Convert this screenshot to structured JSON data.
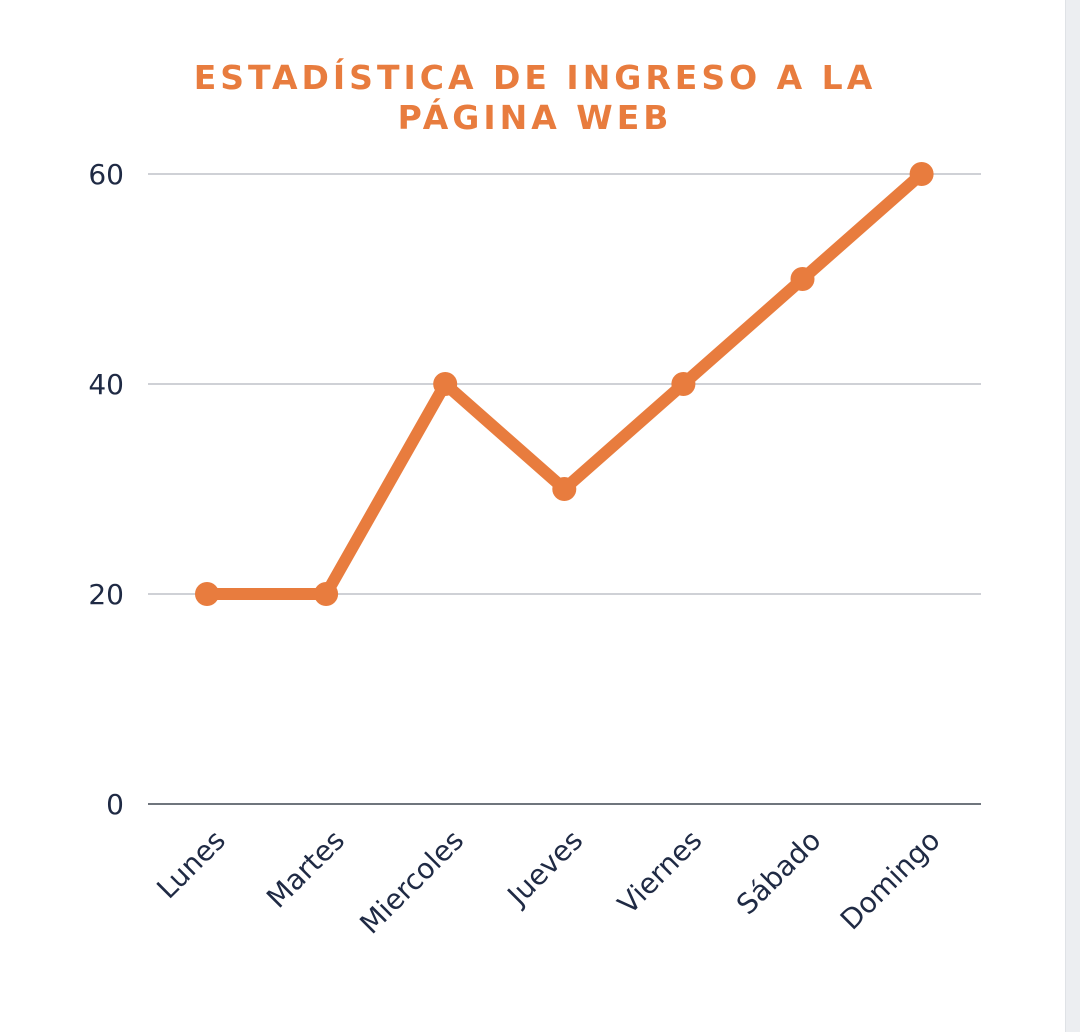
{
  "chart_data": {
    "type": "line",
    "title": "ESTADÍSTICA DE INGRESO A LA PÁGINA WEB",
    "categories": [
      "Lunes",
      "Martes",
      "Miercoles",
      "Jueves",
      "Viernes",
      "Sábado",
      "Domingo"
    ],
    "series": [
      {
        "values": [
          20,
          20,
          40,
          30,
          40,
          50,
          60
        ]
      }
    ],
    "ylim": [
      0,
      60
    ],
    "yticks": [
      0,
      20,
      40,
      60
    ],
    "grid": true,
    "legend": "none",
    "colors": {
      "line": "#e87c3e",
      "title": "#e87c3e",
      "grid": "#cfd1d6",
      "axis": "#6f757d",
      "text": "#1f2a44"
    }
  }
}
